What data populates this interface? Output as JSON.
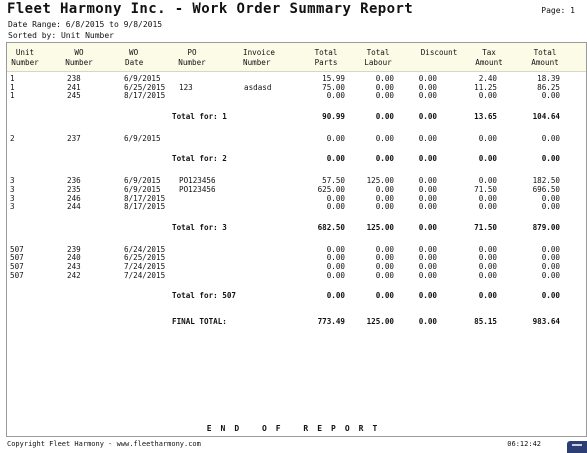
{
  "report": {
    "title": "Fleet Harmony Inc. - Work Order Summary Report",
    "page_label": "Page: 1",
    "date_range": "Date Range:  6/8/2015 to 9/8/2015",
    "sorted_by": "Sorted by:   Unit Number"
  },
  "headers": {
    "unit": [
      "Unit",
      "Number"
    ],
    "wo": [
      "WO",
      "Number"
    ],
    "wo_date": [
      "WO",
      "Date"
    ],
    "po": [
      "PO",
      "Number"
    ],
    "invoice": [
      "Invoice",
      "Number"
    ],
    "parts": [
      "Total",
      "Parts"
    ],
    "labour": [
      "Total",
      "Labour"
    ],
    "discount": [
      "Discount",
      ""
    ],
    "tax": [
      "Tax",
      "Amount"
    ],
    "amount": [
      "Total",
      "Amount"
    ]
  },
  "groups": [
    {
      "rows": [
        [
          "1",
          "238",
          "6/9/2015",
          "",
          "",
          "15.99",
          "0.00",
          "0.00",
          "2.40",
          "18.39"
        ],
        [
          "1",
          "241",
          "6/25/2015",
          "123",
          "asdasd",
          "75.00",
          "0.00",
          "0.00",
          "11.25",
          "86.25"
        ],
        [
          "1",
          "245",
          "8/17/2015",
          "",
          "",
          "0.00",
          "0.00",
          "0.00",
          "0.00",
          "0.00"
        ]
      ],
      "total": [
        "Total for: 1",
        "90.99",
        "0.00",
        "0.00",
        "13.65",
        "104.64"
      ]
    },
    {
      "rows": [
        [
          "2",
          "237",
          "6/9/2015",
          "",
          "",
          "0.00",
          "0.00",
          "0.00",
          "0.00",
          "0.00"
        ]
      ],
      "total": [
        "Total for: 2",
        "0.00",
        "0.00",
        "0.00",
        "0.00",
        "0.00"
      ]
    },
    {
      "rows": [
        [
          "3",
          "236",
          "6/9/2015",
          "PO123456",
          "",
          "57.50",
          "125.00",
          "0.00",
          "0.00",
          "182.50"
        ],
        [
          "3",
          "235",
          "6/9/2015",
          "PO123456",
          "",
          "625.00",
          "0.00",
          "0.00",
          "71.50",
          "696.50"
        ],
        [
          "3",
          "246",
          "8/17/2015",
          "",
          "",
          "0.00",
          "0.00",
          "0.00",
          "0.00",
          "0.00"
        ],
        [
          "3",
          "244",
          "8/17/2015",
          "",
          "",
          "0.00",
          "0.00",
          "0.00",
          "0.00",
          "0.00"
        ]
      ],
      "total": [
        "Total for: 3",
        "682.50",
        "125.00",
        "0.00",
        "71.50",
        "879.00"
      ]
    },
    {
      "rows": [
        [
          "507",
          "239",
          "6/24/2015",
          "",
          "",
          "0.00",
          "0.00",
          "0.00",
          "0.00",
          "0.00"
        ],
        [
          "507",
          "240",
          "6/25/2015",
          "",
          "",
          "0.00",
          "0.00",
          "0.00",
          "0.00",
          "0.00"
        ],
        [
          "507",
          "243",
          "7/24/2015",
          "",
          "",
          "0.00",
          "0.00",
          "0.00",
          "0.00",
          "0.00"
        ],
        [
          "507",
          "242",
          "7/24/2015",
          "",
          "",
          "0.00",
          "0.00",
          "0.00",
          "0.00",
          "0.00"
        ]
      ],
      "total": [
        "Total for: 507",
        "0.00",
        "0.00",
        "0.00",
        "0.00",
        "0.00"
      ]
    }
  ],
  "final_total": [
    "FINAL TOTAL:",
    "773.49",
    "125.00",
    "0.00",
    "85.15",
    "983.64"
  ],
  "end_text": "END OF REPORT",
  "footer": {
    "copyright": "Copyright Fleet Harmony - www.fleetharmony.com",
    "time": "06:12:42"
  }
}
